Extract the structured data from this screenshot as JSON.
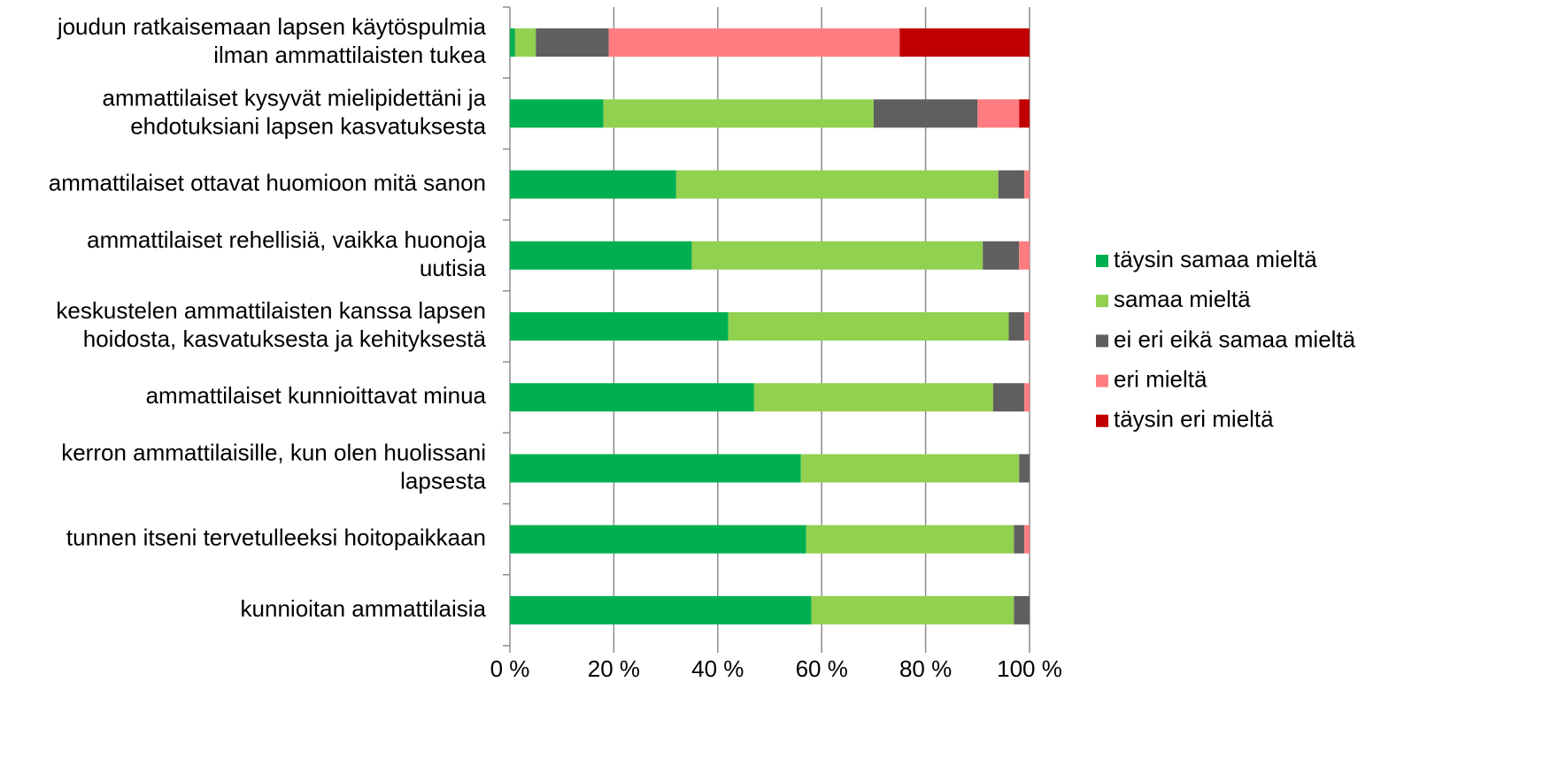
{
  "chart_data": {
    "type": "stacked-barh",
    "categories": [
      "joudun ratkaisemaan lapsen käytöspulmia\nilman ammattilaisten tukea",
      "ammattilaiset kysyvät mielipidettäni ja\nehdotuksiani lapsen kasvatuksesta",
      "ammattilaiset ottavat huomioon mitä sanon",
      "ammattilaiset rehellisiä, vaikka huonoja\nuutisia",
      "keskustelen ammattilaisten kanssa lapsen\nhoidosta, kasvatuksesta ja kehityksestä",
      "ammattilaiset kunnioittavat minua",
      "kerron ammattilaisille, kun olen huolissani\nlapsesta",
      "tunnen itseni tervetulleeksi hoitopaikkaan",
      "kunnioitan ammattilaisia"
    ],
    "series": [
      {
        "name": "täysin samaa mieltä",
        "color": "#00b050",
        "values": [
          1,
          18,
          32,
          35,
          42,
          47,
          56,
          57,
          58
        ]
      },
      {
        "name": "samaa mieltä",
        "color": "#92d050",
        "values": [
          4,
          52,
          62,
          56,
          54,
          46,
          42,
          40,
          39
        ]
      },
      {
        "name": "ei eri eikä samaa mieltä",
        "color": "#5f5f5f",
        "values": [
          14,
          20,
          5,
          7,
          3,
          6,
          2,
          2,
          3
        ]
      },
      {
        "name": "eri mieltä",
        "color": "#ff7c80",
        "values": [
          56,
          8,
          1,
          2,
          1,
          1,
          0,
          1,
          0
        ]
      },
      {
        "name": "täysin eri mieltä",
        "color": "#c00000",
        "values": [
          25,
          2,
          0,
          0,
          0,
          0,
          0,
          0,
          0
        ]
      }
    ],
    "xlim": [
      0,
      100
    ],
    "xticks": [
      {
        "value": 0,
        "label": "0 %"
      },
      {
        "value": 20,
        "label": "20 %"
      },
      {
        "value": 40,
        "label": "40 %"
      },
      {
        "value": 60,
        "label": "60 %"
      },
      {
        "value": 80,
        "label": "80 %"
      },
      {
        "value": 100,
        "label": "100 %"
      }
    ],
    "grid": true,
    "legend": "right"
  }
}
